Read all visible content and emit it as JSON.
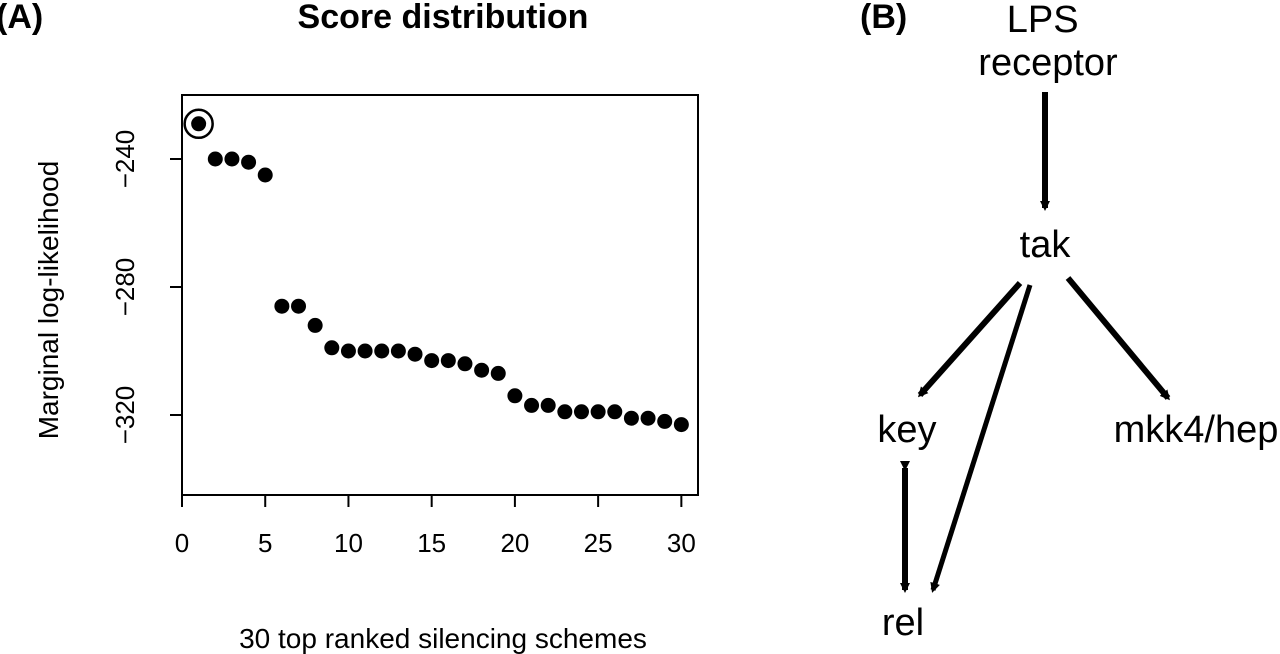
{
  "panels": {
    "a_label": "(A)",
    "b_label": "(B)"
  },
  "chart_data": {
    "type": "scatter",
    "title": "Score distribution",
    "xlabel": "30 top ranked silencing schemes",
    "ylabel": "Marginal log-likelihood",
    "xlim": [
      0,
      31
    ],
    "ylim": [
      -345,
      -220
    ],
    "xticks": [
      0,
      5,
      10,
      15,
      20,
      25,
      30
    ],
    "yticks": [
      -240,
      -280,
      -320
    ],
    "x": [
      1,
      2,
      3,
      4,
      5,
      6,
      7,
      8,
      9,
      10,
      11,
      12,
      13,
      14,
      15,
      16,
      17,
      18,
      19,
      20,
      21,
      22,
      23,
      24,
      25,
      26,
      27,
      28,
      29,
      30
    ],
    "y": [
      -229,
      -240,
      -240,
      -241,
      -245,
      -286,
      -286,
      -292,
      -299,
      -300,
      -300,
      -300,
      -300,
      -301,
      -303,
      -303,
      -304,
      -306,
      -307,
      -314,
      -317,
      -317,
      -319,
      -319,
      -319,
      -319,
      -321,
      -321,
      -322,
      -323
    ],
    "highlighted_index": 0,
    "grid": false,
    "legend": "none"
  },
  "network": {
    "nodes": [
      {
        "id": "lps",
        "lines": [
          "LPS",
          "receptor"
        ]
      },
      {
        "id": "tak",
        "lines": [
          "tak"
        ]
      },
      {
        "id": "key",
        "lines": [
          "key"
        ]
      },
      {
        "id": "mkk4",
        "lines": [
          "mkk4/hep"
        ]
      },
      {
        "id": "rel",
        "lines": [
          "rel"
        ]
      }
    ],
    "edges": [
      {
        "from": "lps",
        "to": "tak",
        "type": "directed"
      },
      {
        "from": "tak",
        "to": "key",
        "type": "directed"
      },
      {
        "from": "tak",
        "to": "mkk4",
        "type": "directed"
      },
      {
        "from": "tak",
        "to": "rel",
        "type": "directed"
      },
      {
        "from": "key",
        "to": "rel",
        "type": "bidirected"
      }
    ]
  }
}
